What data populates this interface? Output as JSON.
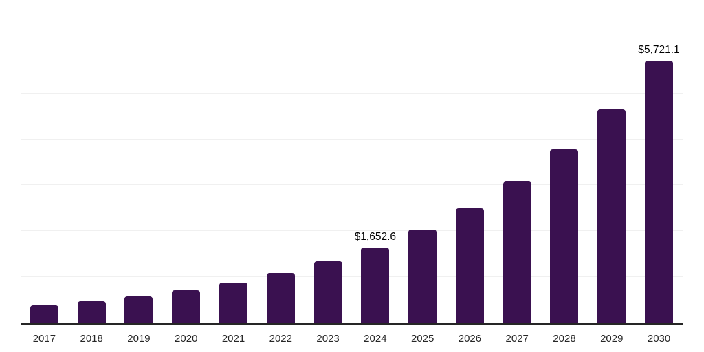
{
  "chart_data": {
    "type": "bar",
    "title": "",
    "xlabel": "",
    "ylabel": "",
    "categories": [
      "2017",
      "2018",
      "2019",
      "2020",
      "2021",
      "2022",
      "2023",
      "2024",
      "2025",
      "2026",
      "2027",
      "2028",
      "2029",
      "2030"
    ],
    "values": [
      390,
      477,
      587,
      722,
      888,
      1092,
      1344,
      1652.6,
      2033,
      2500,
      3075,
      3783,
      4652,
      5721.1
    ],
    "labeled_points": [
      {
        "category": "2024",
        "label": "$1,652.6"
      },
      {
        "category": "2030",
        "label": "$5,721.1"
      }
    ],
    "ylim": [
      0,
      7000
    ],
    "gridline_step": 1000,
    "grid": "horizontal",
    "legend": "none",
    "y_axis_tick_labels": "none",
    "colors": {
      "bar": "#3A1150",
      "axis_line": "#262626",
      "gridline": "#F0F0F0",
      "tick_label": "#262626",
      "data_label": "#000000",
      "background": "#FFFFFF"
    }
  }
}
